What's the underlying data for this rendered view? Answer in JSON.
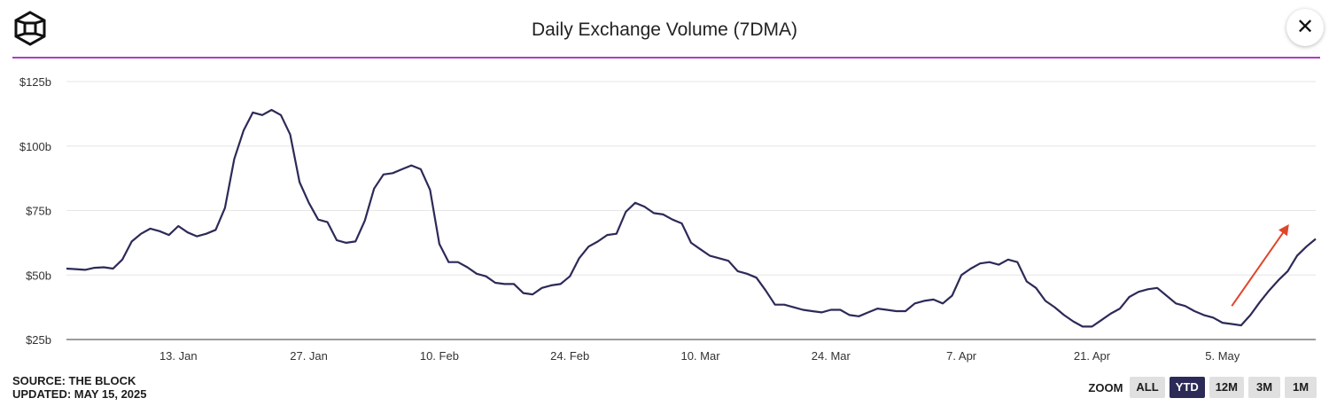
{
  "header": {
    "title": "Daily Exchange Volume (7DMA)",
    "close_label": "✕"
  },
  "footer": {
    "source": "SOURCE: THE BLOCK",
    "updated": "UPDATED: MAY 15, 2025"
  },
  "zoom": {
    "label": "ZOOM",
    "options": [
      "ALL",
      "YTD",
      "12M",
      "3M",
      "1M"
    ],
    "selected": "YTD"
  },
  "colors": {
    "line": "#2c2a57",
    "accent_rule": "#b03cc6",
    "arrow": "#e0452a"
  },
  "chart_data": {
    "type": "line",
    "title": "Daily Exchange Volume (7DMA)",
    "xlabel": "",
    "ylabel": "",
    "ylim": [
      25,
      125
    ],
    "y_ticks": [
      {
        "value": 125,
        "label": "$125b"
      },
      {
        "value": 100,
        "label": "$100b"
      },
      {
        "value": 75,
        "label": "$75b"
      },
      {
        "value": 50,
        "label": "$50b"
      },
      {
        "value": 25,
        "label": "$25b"
      }
    ],
    "x_range": [
      "2025-01-01",
      "2025-05-15"
    ],
    "x_ticks": [
      {
        "date": "2025-01-13",
        "label": "13. Jan"
      },
      {
        "date": "2025-01-27",
        "label": "27. Jan"
      },
      {
        "date": "2025-02-10",
        "label": "10. Feb"
      },
      {
        "date": "2025-02-24",
        "label": "24. Feb"
      },
      {
        "date": "2025-03-10",
        "label": "10. Mar"
      },
      {
        "date": "2025-03-24",
        "label": "24. Mar"
      },
      {
        "date": "2025-04-07",
        "label": "7. Apr"
      },
      {
        "date": "2025-04-21",
        "label": "21. Apr"
      },
      {
        "date": "2025-05-05",
        "label": "5. May"
      }
    ],
    "grid": true,
    "series": [
      {
        "name": "Daily Exchange Volume (7DMA)",
        "unit": "$b",
        "start": "2025-01-01",
        "step_days": 1,
        "values": [
          52.5,
          52.3,
          52,
          52.8,
          53,
          52.5,
          56,
          63,
          66,
          68,
          67,
          65.5,
          69,
          66.5,
          65,
          66,
          67.5,
          76,
          95,
          106,
          113,
          112,
          114,
          112,
          104.5,
          86,
          78,
          71.5,
          70.5,
          63.5,
          62.5,
          63,
          71,
          83.5,
          89,
          89.5,
          91,
          92.5,
          91,
          83,
          62,
          55,
          55,
          53,
          50.5,
          49.5,
          47,
          46.5,
          46.5,
          43,
          42.5,
          45,
          46,
          46.5,
          49.5,
          56.5,
          61,
          63,
          65.5,
          66,
          74.5,
          78,
          76.5,
          74,
          73.5,
          71.5,
          70,
          62.5,
          60,
          57.5,
          56.5,
          55.5,
          51.5,
          50.5,
          49,
          44,
          38.5,
          38.5,
          37.5,
          36.5,
          36,
          35.5,
          36.5,
          36.5,
          34.5,
          34,
          35.5,
          37,
          36.5,
          36,
          36,
          39,
          40,
          40.5,
          39,
          42,
          50,
          52.5,
          54.5,
          55,
          54,
          56,
          55,
          47.5,
          45,
          40,
          37.5,
          34.5,
          32,
          30,
          30,
          32.5,
          35,
          37,
          41.5,
          43.5,
          44.5,
          45,
          42,
          39,
          38,
          36,
          34.5,
          33.5,
          31.5,
          31,
          30.5,
          34.5,
          39.5,
          44,
          48,
          51.5,
          57.5,
          61,
          64
        ]
      }
    ],
    "annotations": [
      {
        "type": "arrow",
        "from": {
          "date": "2025-05-06",
          "value": 38
        },
        "to": {
          "date": "2025-05-12",
          "value": 69
        }
      }
    ]
  }
}
